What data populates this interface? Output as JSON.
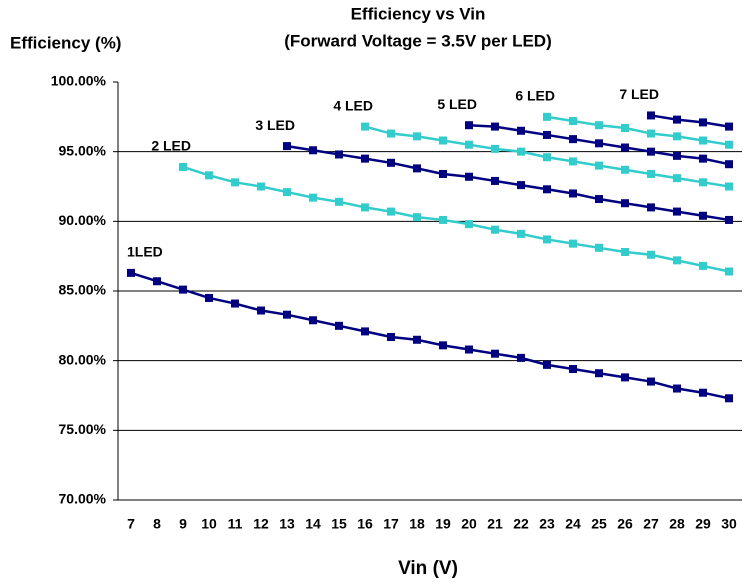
{
  "chart_data": {
    "type": "line",
    "title": "Efficiency vs Vin",
    "subtitle": "(Forward Voltage = 3.5V per LED)",
    "y_axis_label": "Efficiency (%)",
    "x_axis_label": "Vin (V)",
    "categories": [
      "7",
      "8",
      "9",
      "10",
      "11",
      "12",
      "13",
      "14",
      "15",
      "16",
      "17",
      "18",
      "19",
      "20",
      "21",
      "22",
      "23",
      "24",
      "25",
      "26",
      "27",
      "28",
      "29",
      "30"
    ],
    "ylim": [
      70,
      100
    ],
    "yticks": [
      {
        "value": 70,
        "label": "70.00%"
      },
      {
        "value": 75,
        "label": "75.00%"
      },
      {
        "value": 80,
        "label": "80.00%"
      },
      {
        "value": 85,
        "label": "85.00%"
      },
      {
        "value": 90,
        "label": "90.00%"
      },
      {
        "value": 95,
        "label": "95.00%"
      },
      {
        "value": 100,
        "label": "100.00%"
      }
    ],
    "grid": true,
    "series": [
      {
        "name": "1LED",
        "color": "#000080",
        "values": [
          86.3,
          85.7,
          85.1,
          84.5,
          84.1,
          83.6,
          83.3,
          82.9,
          82.5,
          82.1,
          81.7,
          81.5,
          81.1,
          80.8,
          80.5,
          80.2,
          79.7,
          79.4,
          79.1,
          78.8,
          78.5,
          78.0,
          77.7,
          77.3
        ]
      },
      {
        "name": "2 LED",
        "color": "#33cccc",
        "values": [
          null,
          null,
          93.9,
          93.3,
          92.8,
          92.5,
          92.1,
          91.7,
          91.4,
          91.0,
          90.7,
          90.3,
          90.1,
          89.8,
          89.4,
          89.1,
          88.7,
          88.4,
          88.1,
          87.8,
          87.6,
          87.2,
          86.8,
          86.4
        ]
      },
      {
        "name": "3 LED",
        "color": "#000080",
        "values": [
          null,
          null,
          null,
          null,
          null,
          null,
          95.4,
          95.1,
          94.8,
          94.5,
          94.2,
          93.8,
          93.4,
          93.2,
          92.9,
          92.6,
          92.3,
          92.0,
          91.6,
          91.3,
          91.0,
          90.7,
          90.4,
          90.1
        ]
      },
      {
        "name": "4 LED",
        "color": "#33cccc",
        "values": [
          null,
          null,
          null,
          null,
          null,
          null,
          null,
          null,
          null,
          96.8,
          96.3,
          96.1,
          95.8,
          95.5,
          95.2,
          95.0,
          94.6,
          94.3,
          94.0,
          93.7,
          93.4,
          93.1,
          92.8,
          92.5
        ]
      },
      {
        "name": "5 LED",
        "color": "#000080",
        "values": [
          null,
          null,
          null,
          null,
          null,
          null,
          null,
          null,
          null,
          null,
          null,
          null,
          null,
          96.9,
          96.8,
          96.5,
          96.2,
          95.9,
          95.6,
          95.3,
          95.0,
          94.7,
          94.5,
          94.1
        ]
      },
      {
        "name": "6 LED",
        "color": "#33cccc",
        "values": [
          null,
          null,
          null,
          null,
          null,
          null,
          null,
          null,
          null,
          null,
          null,
          null,
          null,
          null,
          null,
          null,
          97.5,
          97.2,
          96.9,
          96.7,
          96.3,
          96.1,
          95.8,
          95.5
        ]
      },
      {
        "name": "7 LED",
        "color": "#000080",
        "values": [
          null,
          null,
          null,
          null,
          null,
          null,
          null,
          null,
          null,
          null,
          null,
          null,
          null,
          null,
          null,
          null,
          null,
          null,
          null,
          null,
          97.6,
          97.3,
          97.1,
          96.8
        ]
      }
    ]
  }
}
